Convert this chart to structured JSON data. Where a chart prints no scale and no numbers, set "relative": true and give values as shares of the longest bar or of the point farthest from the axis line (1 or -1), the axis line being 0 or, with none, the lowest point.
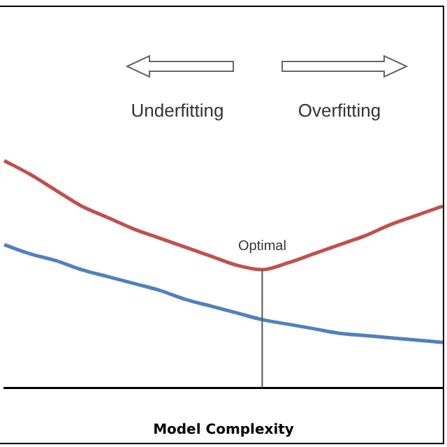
{
  "chart_data": {
    "type": "line",
    "relative": true,
    "xlabel": "Model Complexity",
    "categories": [
      null,
      null,
      null,
      null,
      null,
      null,
      null,
      null,
      null,
      null,
      null,
      null,
      null,
      null,
      null,
      null,
      null,
      null
    ],
    "series": [
      {
        "color": "#c0504d",
        "values": [
          1.0,
          0.94,
          0.87,
          0.8,
          0.75,
          0.7,
          0.66,
          0.62,
          0.58,
          0.54,
          0.52,
          0.55,
          0.59,
          0.63,
          0.67,
          0.72,
          0.76,
          0.8
        ]
      },
      {
        "color": "#4f81bd",
        "values": [
          0.63,
          0.59,
          0.56,
          0.52,
          0.49,
          0.46,
          0.43,
          0.39,
          0.36,
          0.33,
          0.3,
          0.28,
          0.26,
          0.24,
          0.23,
          0.22,
          0.21,
          0.2
        ]
      }
    ],
    "annotations": [
      "Underfitting",
      "Overfitting",
      "Optimal"
    ],
    "grid": false,
    "legend": false,
    "marker": "none",
    "line_style": "solid"
  }
}
